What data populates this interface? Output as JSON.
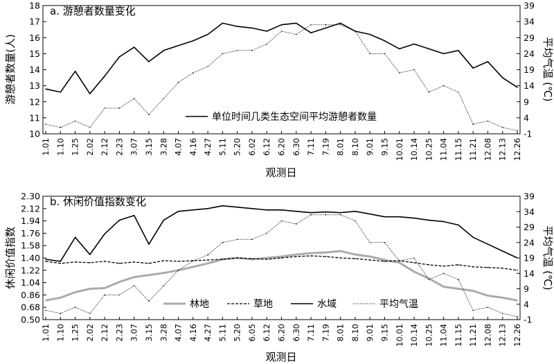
{
  "chart_data": [
    {
      "type": "line",
      "title": "a. 游憩者数量变化",
      "xlabel": "观测日",
      "ylabel_left": "游憩者数量(人)",
      "ylabel_right": "平均气温 (℃)",
      "x": [
        "1.01",
        "1.10",
        "1.25",
        "2.02",
        "2.12",
        "2.23",
        "3.07",
        "3.15",
        "3.28",
        "4.07",
        "4.16",
        "4.27",
        "5.11",
        "5.20",
        "6.02",
        "6.12",
        "6.20",
        "6.30",
        "7.11",
        "7.19",
        "8.01",
        "8.10",
        "9.01",
        "9.15",
        "10.01",
        "10.14",
        "10.25",
        "11.04",
        "11.15",
        "11.21",
        "12.08",
        "12.13",
        "12.26"
      ],
      "ylim_left": [
        10,
        18
      ],
      "yticks_left": [
        "10",
        "11",
        "12",
        "13",
        "14",
        "15",
        "16",
        "17",
        "18"
      ],
      "ylim_right": [
        -1,
        39
      ],
      "yticks_right": [
        "-1",
        "4",
        "9",
        "14",
        "19",
        "24",
        "29",
        "34",
        "39"
      ],
      "legend_position": "lower-center",
      "series": [
        {
          "name": "单位时间几类生态空间平均游憩者数量",
          "axis": "left",
          "style": "solid",
          "values": [
            12.8,
            12.6,
            13.9,
            12.5,
            13.6,
            14.8,
            15.4,
            14.5,
            15.2,
            15.5,
            15.8,
            16.2,
            16.9,
            16.7,
            16.6,
            16.4,
            16.8,
            16.9,
            16.3,
            16.6,
            16.9,
            16.4,
            16.2,
            15.8,
            15.3,
            15.6,
            15.3,
            15.0,
            15.2,
            14.1,
            14.5,
            13.5,
            12.9
          ]
        },
        {
          "name": "平均气温",
          "axis": "right",
          "style": "dotted",
          "values": [
            2,
            1,
            3,
            1,
            7,
            7,
            10,
            5,
            10,
            15,
            18,
            20,
            24,
            25,
            25,
            27,
            31,
            30,
            33,
            33,
            33,
            31,
            24,
            24,
            18,
            19,
            12,
            14,
            12,
            2,
            3,
            1,
            0
          ]
        }
      ]
    },
    {
      "type": "line",
      "title": "b. 休闲价值指数变化",
      "xlabel": "观测日",
      "ylabel_left": "休闲价值指数",
      "ylabel_right": "平均气温 (℃)",
      "x": [
        "1.01",
        "1.10",
        "1.25",
        "2.02",
        "2.12",
        "2.23",
        "3.07",
        "3.15",
        "3.28",
        "4.07",
        "4.16",
        "4.27",
        "5.11",
        "5.20",
        "6.05",
        "6.12",
        "6.20",
        "6.30",
        "7.11",
        "7.19",
        "8.01",
        "8.10",
        "9.01",
        "9.15",
        "10.01",
        "10.14",
        "10.25",
        "11.04",
        "11.15",
        "11.21",
        "12.08",
        "12.13",
        "12.26"
      ],
      "ylim_left": [
        0.5,
        2.3
      ],
      "yticks_left": [
        "0.50",
        "0.68",
        "0.86",
        "1.04",
        "1.22",
        "1.40",
        "1.58",
        "1.76",
        "1.94",
        "2.12",
        "2.30"
      ],
      "ylim_right": [
        -1,
        39
      ],
      "yticks_right": [
        "-1",
        "4",
        "9",
        "14",
        "19",
        "24",
        "29",
        "34",
        "39"
      ],
      "legend_position": "lower-center",
      "series": [
        {
          "name": "林地",
          "axis": "left",
          "style": "thick-gray",
          "values": [
            0.78,
            0.82,
            0.9,
            0.95,
            0.96,
            1.05,
            1.12,
            1.15,
            1.18,
            1.22,
            1.27,
            1.32,
            1.38,
            1.4,
            1.38,
            1.4,
            1.42,
            1.45,
            1.47,
            1.48,
            1.5,
            1.45,
            1.42,
            1.37,
            1.33,
            1.2,
            1.1,
            0.98,
            0.95,
            0.92,
            0.85,
            0.82,
            0.78
          ]
        },
        {
          "name": "草地",
          "axis": "left",
          "style": "dashed",
          "values": [
            1.35,
            1.32,
            1.34,
            1.33,
            1.35,
            1.32,
            1.34,
            1.32,
            1.36,
            1.35,
            1.36,
            1.37,
            1.38,
            1.4,
            1.39,
            1.38,
            1.4,
            1.42,
            1.43,
            1.42,
            1.4,
            1.39,
            1.37,
            1.35,
            1.36,
            1.33,
            1.3,
            1.28,
            1.3,
            1.27,
            1.26,
            1.25,
            1.22
          ]
        },
        {
          "name": "水域",
          "axis": "left",
          "style": "solid",
          "values": [
            1.38,
            1.35,
            1.7,
            1.45,
            1.75,
            1.95,
            2.02,
            1.6,
            1.95,
            2.08,
            2.1,
            2.12,
            2.16,
            2.14,
            2.12,
            2.1,
            2.1,
            2.08,
            2.06,
            2.07,
            2.06,
            2.08,
            2.04,
            2.0,
            2.0,
            1.98,
            1.95,
            1.93,
            1.88,
            1.7,
            1.6,
            1.5,
            1.4
          ]
        },
        {
          "name": "平均气温",
          "axis": "right",
          "style": "dotted",
          "values": [
            2,
            1,
            3,
            1,
            7,
            7,
            10,
            5,
            10,
            15,
            18,
            20,
            24,
            25,
            25,
            27,
            31,
            30,
            33,
            33,
            33,
            31,
            24,
            24,
            18,
            19,
            12,
            14,
            12,
            2,
            3,
            1,
            0
          ]
        }
      ]
    }
  ]
}
